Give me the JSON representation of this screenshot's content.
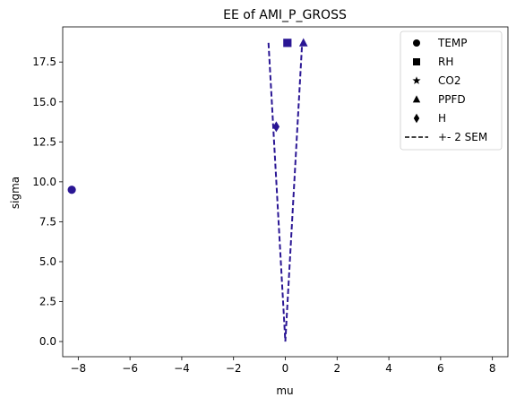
{
  "chart_data": {
    "type": "scatter",
    "title": "EE of AMI_P_GROSS",
    "xlabel": "mu",
    "ylabel": "sigma",
    "xlim": [
      -8.6,
      8.6
    ],
    "ylim": [
      -0.95,
      19.7
    ],
    "xticks": [
      -8,
      -6,
      -4,
      -2,
      0,
      2,
      4,
      6,
      8
    ],
    "xtick_labels": [
      "−8",
      "−6",
      "−4",
      "−2",
      "0",
      "2",
      "4",
      "6",
      "8"
    ],
    "yticks": [
      0.0,
      2.5,
      5.0,
      7.5,
      10.0,
      12.5,
      15.0,
      17.5
    ],
    "ytick_labels": [
      "0.0",
      "2.5",
      "5.0",
      "7.5",
      "10.0",
      "12.5",
      "15.0",
      "17.5"
    ],
    "marker_color": "#2a1694",
    "line_color": "#2a1694",
    "series": [
      {
        "name": "TEMP",
        "marker": "circle",
        "points": [
          [
            -8.25,
            9.5
          ]
        ]
      },
      {
        "name": "RH",
        "marker": "square",
        "points": [
          [
            0.08,
            18.7
          ]
        ]
      },
      {
        "name": "CO2",
        "marker": "star",
        "points": []
      },
      {
        "name": "PPFD",
        "marker": "triangle",
        "points": [
          [
            0.7,
            18.7
          ]
        ]
      },
      {
        "name": "H",
        "marker": "diamond",
        "points": [
          [
            -0.35,
            13.45
          ]
        ]
      }
    ],
    "sem_line": {
      "name": "+- 2 SEM",
      "style": "dashed",
      "points": [
        [
          -0.65,
          18.7
        ],
        [
          0.0,
          0.0
        ],
        [
          0.65,
          18.7
        ]
      ]
    },
    "legend": {
      "position": "top-right",
      "entries": [
        {
          "label": "TEMP",
          "marker": "circle"
        },
        {
          "label": "RH",
          "marker": "square"
        },
        {
          "label": "CO2",
          "marker": "star"
        },
        {
          "label": "PPFD",
          "marker": "triangle"
        },
        {
          "label": "H",
          "marker": "diamond"
        },
        {
          "label": "+- 2 SEM",
          "marker": "dashed-line"
        }
      ]
    }
  }
}
